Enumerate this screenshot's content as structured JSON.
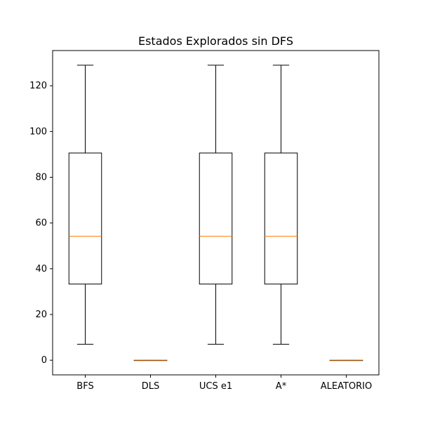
{
  "chart_data": {
    "type": "box",
    "title": "Estados Explorados sin DFS",
    "xlabel": "",
    "ylabel": "",
    "ylim": [
      -6.4,
      135.4
    ],
    "yticks": [
      0,
      20,
      40,
      60,
      80,
      100,
      120
    ],
    "grid": false,
    "categories": [
      "BFS",
      "DLS",
      "UCS e1",
      "A*",
      "ALEATORIO"
    ],
    "boxes": [
      {
        "label": "BFS",
        "whisker_low": 7,
        "q1": 33.3,
        "median": 54.2,
        "q3": 90.6,
        "whisker_high": 129
      },
      {
        "label": "DLS",
        "whisker_low": 0,
        "q1": 0,
        "median": 0,
        "q3": 0,
        "whisker_high": 0
      },
      {
        "label": "UCS e1",
        "whisker_low": 7,
        "q1": 33.3,
        "median": 54.2,
        "q3": 90.6,
        "whisker_high": 129
      },
      {
        "label": "A*",
        "whisker_low": 7,
        "q1": 33.3,
        "median": 54.2,
        "q3": 90.6,
        "whisker_high": 129
      },
      {
        "label": "ALEATORIO",
        "whisker_low": 0,
        "q1": 0,
        "median": 0,
        "q3": 0,
        "whisker_high": 0
      }
    ],
    "colors": {
      "box": "#000000",
      "median": "#ff7f0e"
    }
  }
}
